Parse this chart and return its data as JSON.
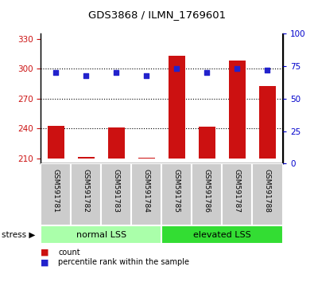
{
  "title": "GDS3868 / ILMN_1769601",
  "samples": [
    "GSM591781",
    "GSM591782",
    "GSM591783",
    "GSM591784",
    "GSM591785",
    "GSM591786",
    "GSM591787",
    "GSM591788"
  ],
  "counts": [
    243,
    212,
    241,
    211,
    313,
    242,
    308,
    283
  ],
  "percentile_ranks": [
    70,
    68,
    70,
    68,
    73,
    70,
    73,
    72
  ],
  "ylim_left": [
    205,
    335
  ],
  "ylim_right": [
    0,
    100
  ],
  "yticks_left": [
    210,
    240,
    270,
    300,
    330
  ],
  "yticks_right": [
    0,
    25,
    50,
    75,
    100
  ],
  "bar_color": "#cc1111",
  "dot_color": "#2222cc",
  "bar_bottom": 210,
  "groups": [
    {
      "label": "normal LSS",
      "start": 0,
      "end": 4,
      "color": "#aaffaa"
    },
    {
      "label": "elevated LSS",
      "start": 4,
      "end": 8,
      "color": "#33dd33"
    }
  ],
  "stress_label": "stress",
  "legend": [
    {
      "color": "#cc1111",
      "label": "count"
    },
    {
      "color": "#2222cc",
      "label": "percentile rank within the sample"
    }
  ],
  "left_axis_color": "#cc1111",
  "right_axis_color": "#0000cc",
  "grid_lines": [
    240,
    270,
    300
  ],
  "bar_width": 0.55
}
